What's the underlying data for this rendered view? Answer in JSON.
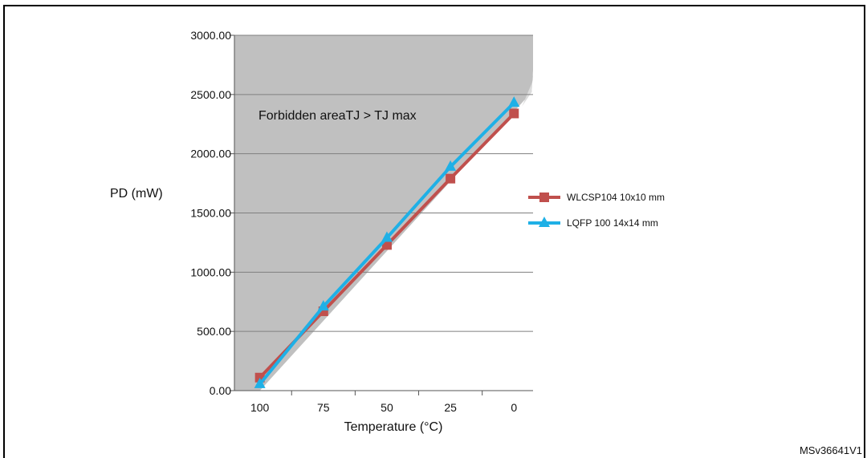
{
  "chart_data": {
    "type": "line",
    "xlabel": "Temperature (°C)",
    "ylabel": "PD (mW)",
    "x": [
      100,
      75,
      50,
      25,
      0
    ],
    "x_tick_labels": [
      "100",
      "75",
      "50",
      "25",
      "0"
    ],
    "x_reversed": true,
    "ylim": [
      0,
      3000
    ],
    "y_ticks": [
      0,
      500,
      1000,
      1500,
      2000,
      2500,
      3000
    ],
    "y_tick_labels": [
      "0.00",
      "500.00",
      "1000.00",
      "1500.00",
      "2000.00",
      "2500.00",
      "3000.00"
    ],
    "grid": true,
    "legend_position": "right",
    "series": [
      {
        "name": "WLCSP104 10x10 mm",
        "color": "#c0504d",
        "marker": "square",
        "values": [
          110,
          670,
          1230,
          1790,
          2340
        ]
      },
      {
        "name": "LQFP 100 14x14 mm",
        "color": "#1fb0e6",
        "marker": "triangle",
        "values": [
          55,
          710,
          1290,
          1890,
          2430
        ]
      }
    ],
    "annotation": "Forbidden areaTJ > TJ max",
    "region_color": "#c0c0c0"
  },
  "figure_ref": "MSv36641V1"
}
